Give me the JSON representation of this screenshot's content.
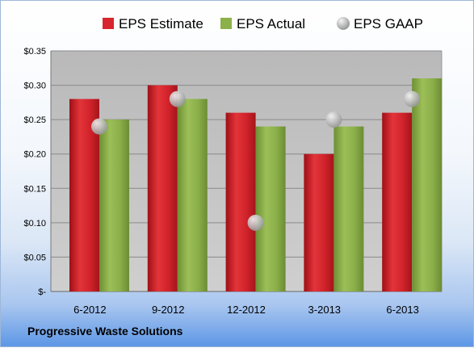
{
  "chart_data": {
    "type": "bar",
    "categories": [
      "6-2012",
      "9-2012",
      "12-2012",
      "3-2013",
      "6-2013"
    ],
    "series": [
      {
        "name": "EPS Estimate",
        "type": "bar",
        "color": "#d8262e",
        "values": [
          0.28,
          0.3,
          0.26,
          0.2,
          0.26
        ]
      },
      {
        "name": "EPS Actual",
        "type": "bar",
        "color": "#8cb04a",
        "values": [
          0.25,
          0.28,
          0.24,
          0.24,
          0.31
        ]
      },
      {
        "name": "EPS GAAP",
        "type": "scatter",
        "color": "#b8b8b8",
        "values": [
          0.24,
          0.28,
          0.1,
          0.25,
          0.28
        ]
      }
    ],
    "ylim": [
      0,
      0.35
    ],
    "yticks": [
      0,
      0.05,
      0.1,
      0.15,
      0.2,
      0.25,
      0.3,
      0.35
    ],
    "ytick_labels": [
      "$-",
      "$0.05",
      "$0.10",
      "$0.15",
      "$0.20",
      "$0.25",
      "$0.30",
      "$0.35"
    ],
    "grid": true,
    "legend_position": "top",
    "plot_background": "#c0c0c0"
  },
  "footer": {
    "company": "Progressive Waste Solutions"
  }
}
